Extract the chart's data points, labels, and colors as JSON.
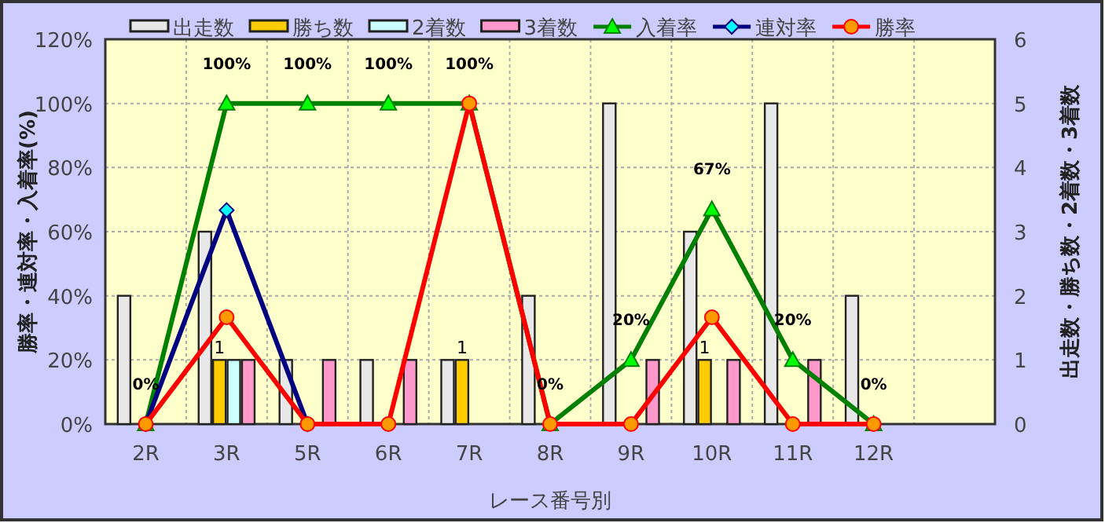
{
  "chart_data": {
    "type": "bar",
    "xlabel": "レース番号別",
    "ylabel": "勝率・連対率・入着率(%)",
    "y2label": "出走数・勝ち数・2着数・3着数",
    "categories": [
      "2R",
      "3R",
      "5R",
      "6R",
      "7R",
      "8R",
      "9R",
      "10R",
      "11R",
      "12R",
      null
    ],
    "ylim": [
      0,
      120
    ],
    "yticks": [
      {
        "value": 0,
        "label": "0%"
      },
      {
        "value": 20,
        "label": "20%"
      },
      {
        "value": 40,
        "label": "40%"
      },
      {
        "value": 60,
        "label": "60%"
      },
      {
        "value": 80,
        "label": "80%"
      },
      {
        "value": 100,
        "label": "100%"
      },
      {
        "value": 120,
        "label": "120%"
      }
    ],
    "y2lim": [
      0,
      6
    ],
    "y2ticks": [
      0,
      1,
      2,
      3,
      4,
      5,
      6
    ],
    "grid": true,
    "legend": "top",
    "series": [
      {
        "name": "出走数",
        "axis": "y2",
        "color": "#e8e8e8",
        "values": [
          2,
          3,
          1,
          1,
          1,
          2,
          5,
          3,
          5,
          2,
          null
        ]
      },
      {
        "name": "勝ち数",
        "axis": "y2",
        "color": "#ffcc00",
        "values": [
          0,
          1,
          0,
          0,
          1,
          0,
          0,
          1,
          0,
          0,
          null
        ],
        "value_labels": [
          null,
          "1",
          null,
          null,
          "1",
          null,
          null,
          "1",
          null,
          null,
          null
        ]
      },
      {
        "name": "2着数",
        "axis": "y2",
        "color": "#ccffff",
        "values": [
          0,
          1,
          0,
          0,
          0,
          0,
          0,
          0,
          0,
          0,
          null
        ]
      },
      {
        "name": "3着数",
        "axis": "y2",
        "color": "#ff99cc",
        "values": [
          0,
          1,
          1,
          1,
          0,
          0,
          1,
          1,
          1,
          0,
          null
        ]
      },
      {
        "name": "入着率",
        "type": "line",
        "marker": "triangle",
        "color": "#008000",
        "values": [
          0,
          100,
          100,
          100,
          100,
          0,
          20,
          67,
          20,
          0,
          null
        ],
        "value_labels": [
          "0%",
          "100%",
          "100%",
          "100%",
          "100%",
          "0%",
          "20%",
          "67%",
          "20%",
          "0%",
          null
        ]
      },
      {
        "name": "連対率",
        "type": "line",
        "marker": "diamond",
        "color": "#000080",
        "values": [
          0,
          66.7,
          0,
          null,
          null,
          null,
          null,
          null,
          null,
          null,
          null
        ]
      },
      {
        "name": "勝率",
        "type": "line",
        "marker": "circle",
        "color": "#ff0000",
        "values": [
          0,
          33.3,
          0,
          0,
          100,
          0,
          0,
          33.3,
          0,
          0,
          null
        ]
      }
    ]
  }
}
